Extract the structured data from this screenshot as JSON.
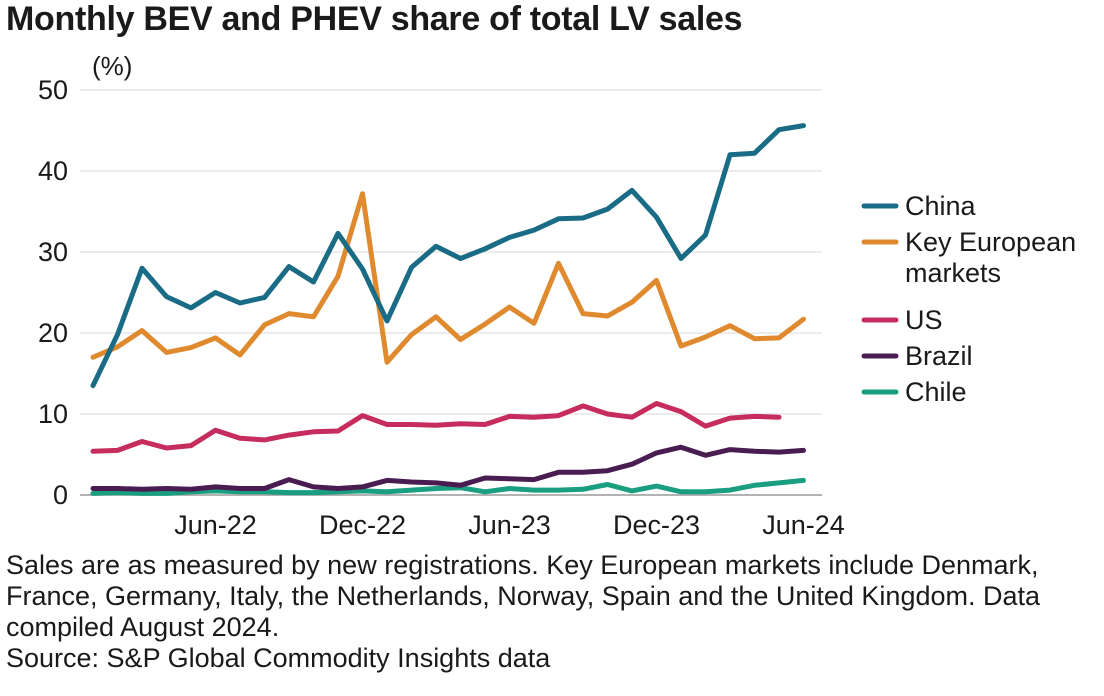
{
  "title": "Monthly BEV and PHEV share of total LV sales",
  "footnote": "Sales are as measured by new registrations. Key European markets include Denmark, France, Germany, Italy, the Netherlands, Norway, Spain and the United Kingdom. Data compiled August 2024.",
  "source": "Source: S&P Global Commodity Insights data",
  "chart_data": {
    "type": "line",
    "title": "Monthly BEV and PHEV share of total LV sales",
    "ylabel": "(%)",
    "xlabel": "",
    "ylim": [
      0,
      50
    ],
    "yticks": [
      0,
      10,
      20,
      30,
      40,
      50
    ],
    "grid": "horizontal",
    "legend_position": "right",
    "x": [
      "Jan-22",
      "Feb-22",
      "Mar-22",
      "Apr-22",
      "May-22",
      "Jun-22",
      "Jul-22",
      "Aug-22",
      "Sep-22",
      "Oct-22",
      "Nov-22",
      "Dec-22",
      "Jan-23",
      "Feb-23",
      "Mar-23",
      "Apr-23",
      "May-23",
      "Jun-23",
      "Jul-23",
      "Aug-23",
      "Sep-23",
      "Oct-23",
      "Nov-23",
      "Dec-23",
      "Jan-24",
      "Feb-24",
      "Mar-24",
      "Apr-24",
      "May-24",
      "Jun-24"
    ],
    "xtick_labels": [
      "Jun-22",
      "Dec-22",
      "Jun-23",
      "Dec-23",
      "Jun-24"
    ],
    "series": [
      {
        "name": "China",
        "color": "#1a6b85",
        "values": [
          13.5,
          19.8,
          28.0,
          24.5,
          23.1,
          25.0,
          23.7,
          24.4,
          28.2,
          26.3,
          32.3,
          27.9,
          21.5,
          28.1,
          30.7,
          29.2,
          30.4,
          31.8,
          32.7,
          34.1,
          34.2,
          35.3,
          37.6,
          34.3,
          29.2,
          32.1,
          42.0,
          42.2,
          45.1,
          45.6
        ]
      },
      {
        "name": "Key European markets",
        "legend_lines": [
          "Key European",
          "markets"
        ],
        "color": "#e08a30",
        "values": [
          17.0,
          18.3,
          20.3,
          17.6,
          18.2,
          19.4,
          17.3,
          21.0,
          22.4,
          22.0,
          27.0,
          37.2,
          16.4,
          19.8,
          22.0,
          19.2,
          21.1,
          23.2,
          21.2,
          28.6,
          22.4,
          22.1,
          23.8,
          26.5,
          18.4,
          19.5,
          20.9,
          19.3,
          19.4,
          21.7
        ]
      },
      {
        "name": "US",
        "color": "#c62c5c",
        "values": [
          5.4,
          5.5,
          6.6,
          5.8,
          6.1,
          8.0,
          7.0,
          6.8,
          7.4,
          7.8,
          7.9,
          9.8,
          8.7,
          8.7,
          8.6,
          8.8,
          8.7,
          9.7,
          9.6,
          9.8,
          11.0,
          10.0,
          9.6,
          11.3,
          10.3,
          8.5,
          9.5,
          9.7,
          9.6,
          null
        ]
      },
      {
        "name": "Brazil",
        "color": "#4a1d52",
        "values": [
          0.8,
          0.8,
          0.7,
          0.8,
          0.7,
          1.0,
          0.8,
          0.8,
          1.9,
          1.0,
          0.8,
          1.0,
          1.8,
          1.6,
          1.5,
          1.2,
          2.1,
          2.0,
          1.9,
          2.8,
          2.8,
          3.0,
          3.8,
          5.2,
          5.9,
          4.9,
          5.6,
          5.4,
          5.3,
          5.5
        ]
      },
      {
        "name": "Chile",
        "color": "#199e80",
        "values": [
          0.2,
          0.3,
          0.2,
          0.2,
          0.4,
          0.5,
          0.4,
          0.4,
          0.3,
          0.3,
          0.4,
          0.5,
          0.4,
          0.6,
          0.8,
          0.9,
          0.4,
          0.8,
          0.6,
          0.6,
          0.7,
          1.3,
          0.5,
          1.1,
          0.4,
          0.4,
          0.6,
          1.2,
          1.5,
          1.8
        ]
      }
    ]
  }
}
